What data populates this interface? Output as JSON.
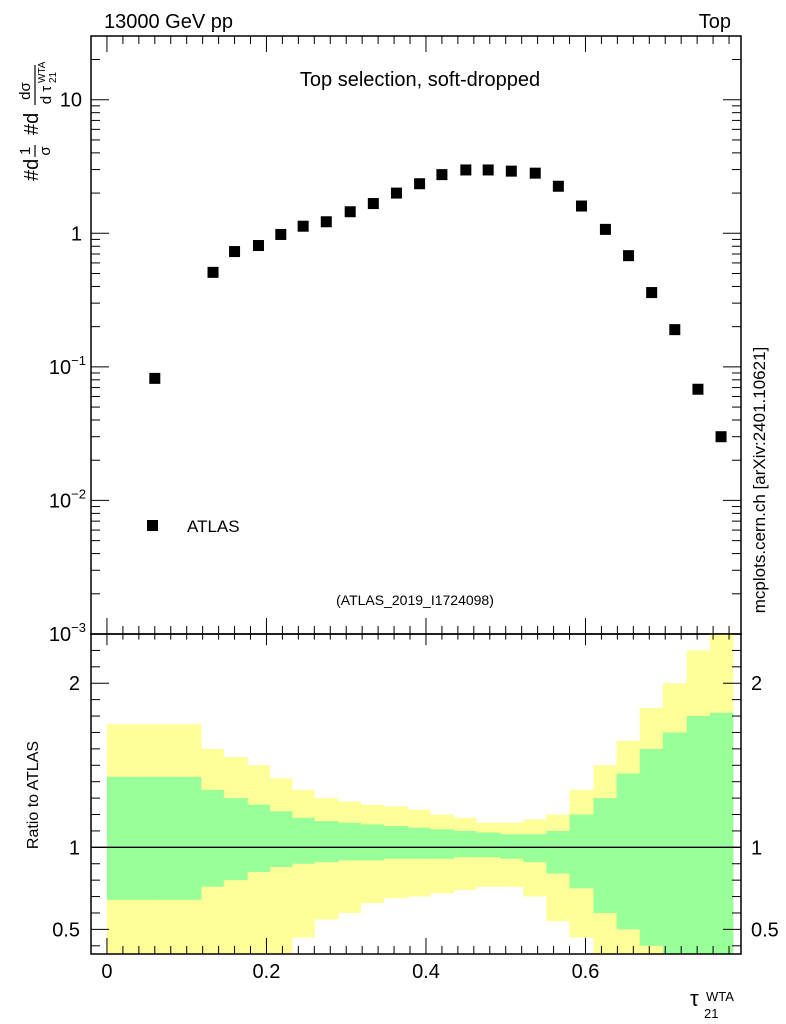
{
  "header": {
    "energy_label": "13000 GeV pp",
    "process_label": "Top"
  },
  "side_label": "mcplots.cern.ch [arXiv:2401.10621]",
  "chart_data": [
    {
      "type": "scatter",
      "title": "Top selection, soft-dropped",
      "ylabel": "#d1/σ #d dσ/d τ21^WTA",
      "ylabel_parts": {
        "prefix": "#d",
        "frac1_num": "1",
        "frac1_den": "σ",
        "mid": "#d",
        "frac2_num": "dσ",
        "frac2_den": "d τ",
        "sub": "21",
        "sup": "WTA"
      },
      "xlabel": "τ21^WTA",
      "xlabel_parts": {
        "base": "τ",
        "sub": "21",
        "sup": "WTA"
      },
      "yscale": "log",
      "ylim": [
        0.001,
        30
      ],
      "xlim": [
        -0.02,
        0.795
      ],
      "y_ticks": [
        {
          "value": 0.001,
          "mantissa": "10",
          "exp": "−3"
        },
        {
          "value": 0.01,
          "mantissa": "10",
          "exp": "−2"
        },
        {
          "value": 0.1,
          "mantissa": "10",
          "exp": "−1"
        },
        {
          "value": 1,
          "mantissa": "1",
          "exp": ""
        },
        {
          "value": 10,
          "mantissa": "10",
          "exp": ""
        }
      ],
      "legend": {
        "position": "bottom-left",
        "entries": [
          "ATLAS"
        ]
      },
      "annotation": "(ATLAS_2019_I1724098)",
      "series": [
        {
          "name": "ATLAS",
          "marker": "square",
          "color": "#000000",
          "x": [
            0.06,
            0.133,
            0.16,
            0.19,
            0.218,
            0.246,
            0.275,
            0.305,
            0.334,
            0.363,
            0.392,
            0.42,
            0.45,
            0.478,
            0.507,
            0.537,
            0.566,
            0.595,
            0.625,
            0.654,
            0.683,
            0.712,
            0.741,
            0.77
          ],
          "y": [
            0.082,
            0.51,
            0.73,
            0.81,
            0.98,
            1.13,
            1.22,
            1.45,
            1.67,
            2.0,
            2.35,
            2.75,
            2.98,
            2.98,
            2.92,
            2.82,
            2.25,
            1.6,
            1.07,
            0.68,
            0.36,
            0.19,
            0.068,
            0.03
          ]
        }
      ]
    },
    {
      "type": "area",
      "ylabel": "Ratio to ATLAS",
      "ylim": [
        0.35,
        2.3
      ],
      "xlim": [
        -0.02,
        0.795
      ],
      "x_ticks": [
        {
          "value": 0,
          "label": "0"
        },
        {
          "value": 0.2,
          "label": "0.2"
        },
        {
          "value": 0.4,
          "label": "0.4"
        },
        {
          "value": 0.6,
          "label": "0.6"
        }
      ],
      "y_ticks": [
        {
          "value": 0.5,
          "label": "0.5"
        },
        {
          "value": 1,
          "label": "1"
        },
        {
          "value": 2,
          "label": "2"
        }
      ],
      "reference_line": 1,
      "bin_edges": [
        0,
        0.03,
        0.06,
        0.09,
        0.118,
        0.146,
        0.176,
        0.204,
        0.232,
        0.26,
        0.29,
        0.318,
        0.347,
        0.377,
        0.405,
        0.435,
        0.463,
        0.493,
        0.522,
        0.551,
        0.58,
        0.61,
        0.639,
        0.668,
        0.697,
        0.727,
        0.756,
        0.785
      ],
      "bands": [
        {
          "name": "yellow band",
          "color": "#ffff99",
          "upper": [
            1.75,
            1.75,
            1.75,
            1.75,
            1.6,
            1.55,
            1.5,
            1.42,
            1.35,
            1.3,
            1.28,
            1.26,
            1.25,
            1.23,
            1.2,
            1.18,
            1.15,
            1.15,
            1.17,
            1.2,
            1.35,
            1.5,
            1.65,
            1.85,
            2.0,
            2.2,
            2.3
          ],
          "lower": [
            0.35,
            0.35,
            0.35,
            0.35,
            0.35,
            0.35,
            0.35,
            0.35,
            0.45,
            0.56,
            0.6,
            0.66,
            0.69,
            0.7,
            0.72,
            0.74,
            0.76,
            0.76,
            0.7,
            0.55,
            0.45,
            0.35,
            0.35,
            0.35,
            0.35,
            0.35,
            0.35
          ]
        },
        {
          "name": "green band",
          "color": "#99ff99",
          "upper": [
            1.43,
            1.43,
            1.43,
            1.43,
            1.35,
            1.3,
            1.26,
            1.22,
            1.18,
            1.16,
            1.15,
            1.14,
            1.13,
            1.12,
            1.11,
            1.1,
            1.09,
            1.08,
            1.08,
            1.1,
            1.2,
            1.3,
            1.45,
            1.6,
            1.7,
            1.8,
            1.82
          ],
          "lower": [
            0.68,
            0.68,
            0.68,
            0.68,
            0.76,
            0.8,
            0.85,
            0.88,
            0.9,
            0.91,
            0.92,
            0.92,
            0.93,
            0.93,
            0.93,
            0.94,
            0.94,
            0.93,
            0.91,
            0.84,
            0.75,
            0.6,
            0.5,
            0.4,
            0.35,
            0.35,
            0.35
          ]
        }
      ]
    }
  ]
}
